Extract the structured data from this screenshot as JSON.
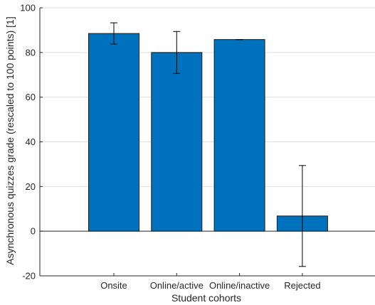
{
  "chart_data": {
    "type": "bar",
    "categories": [
      "Onsite",
      "Online/active",
      "Online/inactive",
      "Rejected"
    ],
    "values": [
      88.5,
      80.0,
      85.8,
      6.8
    ],
    "error_bars": [
      {
        "low": 83.8,
        "high": 93.3
      },
      {
        "low": 70.6,
        "high": 89.4
      },
      {
        "low": 85.8,
        "high": 85.8
      },
      {
        "low": -15.8,
        "high": 29.4
      }
    ],
    "xlabel": "Student cohorts",
    "ylabel": "Asynchronous quizzes grade (rescaled to 100 points) [1]",
    "ylim": [
      -20,
      100
    ],
    "yticks": [
      -20,
      0,
      20,
      40,
      60,
      80,
      100
    ],
    "grid": true,
    "bar_color": "#0072BD"
  }
}
